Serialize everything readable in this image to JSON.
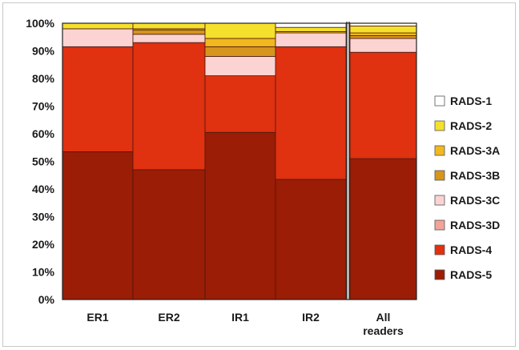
{
  "chart_data": {
    "type": "bar",
    "stacked": true,
    "percent": true,
    "title": "",
    "xlabel": "",
    "ylabel": "",
    "ylim": [
      0,
      100
    ],
    "grid": false,
    "legend_position": "right",
    "y_ticks": [
      "0%",
      "10%",
      "20%",
      "30%",
      "40%",
      "50%",
      "60%",
      "70%",
      "80%",
      "90%",
      "100%"
    ],
    "categories": [
      "ER1",
      "ER2",
      "IR1",
      "IR2",
      "All readers"
    ],
    "category_label_lines": [
      [
        "ER1"
      ],
      [
        "ER2"
      ],
      [
        "IR1"
      ],
      [
        "IR2"
      ],
      [
        "All",
        "readers"
      ]
    ],
    "series": [
      {
        "name": "RADS-5",
        "color": "#9b1d05",
        "values": [
          53.5,
          47.0,
          60.5,
          43.5,
          51.0
        ]
      },
      {
        "name": "RADS-4",
        "color": "#e03110",
        "values": [
          38.0,
          46.0,
          20.5,
          48.0,
          38.5
        ]
      },
      {
        "name": "RADS-3D",
        "color": "#f2a39a",
        "values": [
          0.0,
          0.0,
          0.0,
          0.0,
          0.0
        ]
      },
      {
        "name": "RADS-3C",
        "color": "#fbd3d3",
        "values": [
          6.5,
          3.0,
          7.0,
          5.0,
          5.0
        ]
      },
      {
        "name": "RADS-3B",
        "color": "#d6951d",
        "values": [
          0.0,
          1.5,
          3.5,
          0.0,
          1.0
        ]
      },
      {
        "name": "RADS-3A",
        "color": "#f2b81e",
        "values": [
          0.0,
          0.5,
          3.0,
          0.5,
          1.0
        ]
      },
      {
        "name": "RADS-2",
        "color": "#f5e02c",
        "values": [
          2.0,
          2.0,
          5.5,
          1.5,
          2.5
        ]
      },
      {
        "name": "RADS-1",
        "color": "#ffffff",
        "values": [
          0.0,
          0.0,
          0.0,
          1.5,
          1.0
        ]
      }
    ],
    "legend_order": [
      "RADS-1",
      "RADS-2",
      "RADS-3A",
      "RADS-3B",
      "RADS-3C",
      "RADS-3D",
      "RADS-4",
      "RADS-5"
    ]
  }
}
